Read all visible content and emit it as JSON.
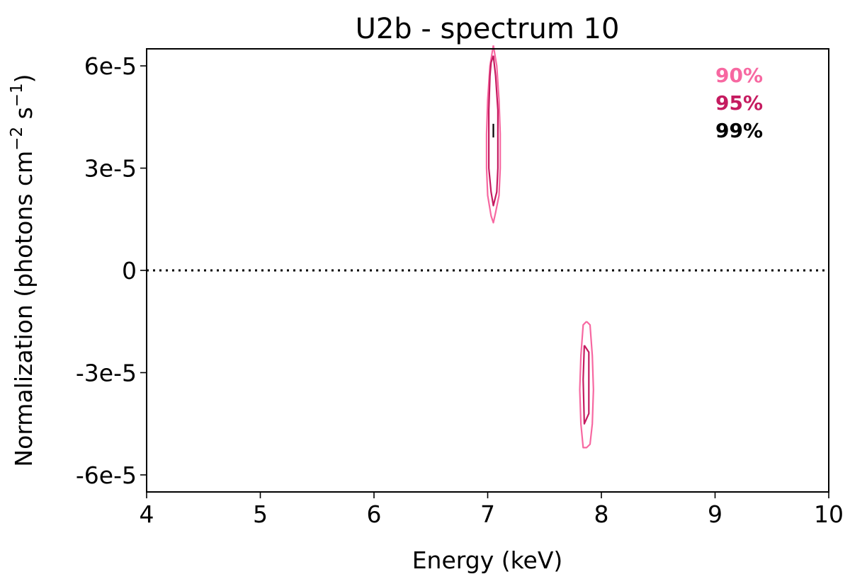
{
  "chart_data": {
    "type": "contour",
    "title": "U2b - spectrum 10",
    "xlabel": "Energy (keV)",
    "ylabel_main": "Normalization (photons cm",
    "ylabel_exp1": "−2",
    "ylabel_mid": " s",
    "ylabel_exp2": "−1",
    "ylabel_end": ")",
    "xlim": [
      4,
      10
    ],
    "ylim": [
      -6.5e-05,
      6.5e-05
    ],
    "xticks": [
      {
        "value": 4,
        "label": "4"
      },
      {
        "value": 5,
        "label": "5"
      },
      {
        "value": 6,
        "label": "6"
      },
      {
        "value": 7,
        "label": "7"
      },
      {
        "value": 8,
        "label": "8"
      },
      {
        "value": 9,
        "label": "9"
      },
      {
        "value": 10,
        "label": "10"
      }
    ],
    "yticks": [
      {
        "value": 6e-05,
        "label": "6e-5"
      },
      {
        "value": 3e-05,
        "label": "3e-5"
      },
      {
        "value": 0,
        "label": "0"
      },
      {
        "value": -3e-05,
        "label": "-3e-5"
      },
      {
        "value": -6e-05,
        "label": "-6e-5"
      }
    ],
    "reference_line": {
      "y": 0,
      "style": "dotted",
      "color": "#000000"
    },
    "legend": {
      "placement": "top-right",
      "entries": [
        {
          "label": "90%",
          "color": "#f768a1"
        },
        {
          "label": "95%",
          "color": "#c51b60"
        },
        {
          "label": "99%",
          "color": "#000000"
        }
      ]
    },
    "series": [
      {
        "level": "90%",
        "color": "#f768a1",
        "contours": [
          {
            "x": [
              7.05,
              7.08,
              7.1,
              7.11,
              7.11,
              7.1,
              7.07,
              7.05,
              7.03,
              7.0,
              6.99,
              6.99,
              7.0,
              7.02,
              7.05
            ],
            "y": [
              6.6e-05,
              6e-05,
              5e-05,
              4e-05,
              3e-05,
              2.2e-05,
              1.7e-05,
              1.4e-05,
              1.6e-05,
              2.2e-05,
              3e-05,
              4e-05,
              5e-05,
              6e-05,
              6.6e-05
            ]
          },
          {
            "x": [
              7.87,
              7.9,
              7.92,
              7.93,
              7.92,
              7.9,
              7.87,
              7.84,
              7.82,
              7.81,
              7.82,
              7.84,
              7.87
            ],
            "y": [
              -1.5e-05,
              -1.6e-05,
              -2.5e-05,
              -3.5e-05,
              -4.5e-05,
              -5.1e-05,
              -5.2e-05,
              -5.2e-05,
              -4.5e-05,
              -3.5e-05,
              -2.5e-05,
              -1.6e-05,
              -1.5e-05
            ]
          }
        ]
      },
      {
        "level": "95%",
        "color": "#c51b60",
        "contours": [
          {
            "x": [
              7.05,
              7.07,
              7.09,
              7.09,
              7.08,
              7.05,
              7.03,
              7.01,
              7.01,
              7.02,
              7.03,
              7.05
            ],
            "y": [
              6.3e-05,
              5.7e-05,
              4.7e-05,
              3e-05,
              2.3e-05,
              1.9e-05,
              2.3e-05,
              3e-05,
              4.7e-05,
              5.7e-05,
              6.1e-05,
              6.3e-05
            ]
          },
          {
            "x": [
              7.85,
              7.89,
              7.89,
              7.85,
              7.84,
              7.85
            ],
            "y": [
              -2.2e-05,
              -2.4e-05,
              -4.2e-05,
              -4.5e-05,
              -3.2e-05,
              -2.2e-05
            ]
          }
        ]
      },
      {
        "level": "99%",
        "color": "#000000",
        "contours": [
          {
            "x": [
              7.05,
              7.05
            ],
            "y": [
              4.3e-05,
              3.9e-05
            ]
          }
        ]
      }
    ]
  }
}
